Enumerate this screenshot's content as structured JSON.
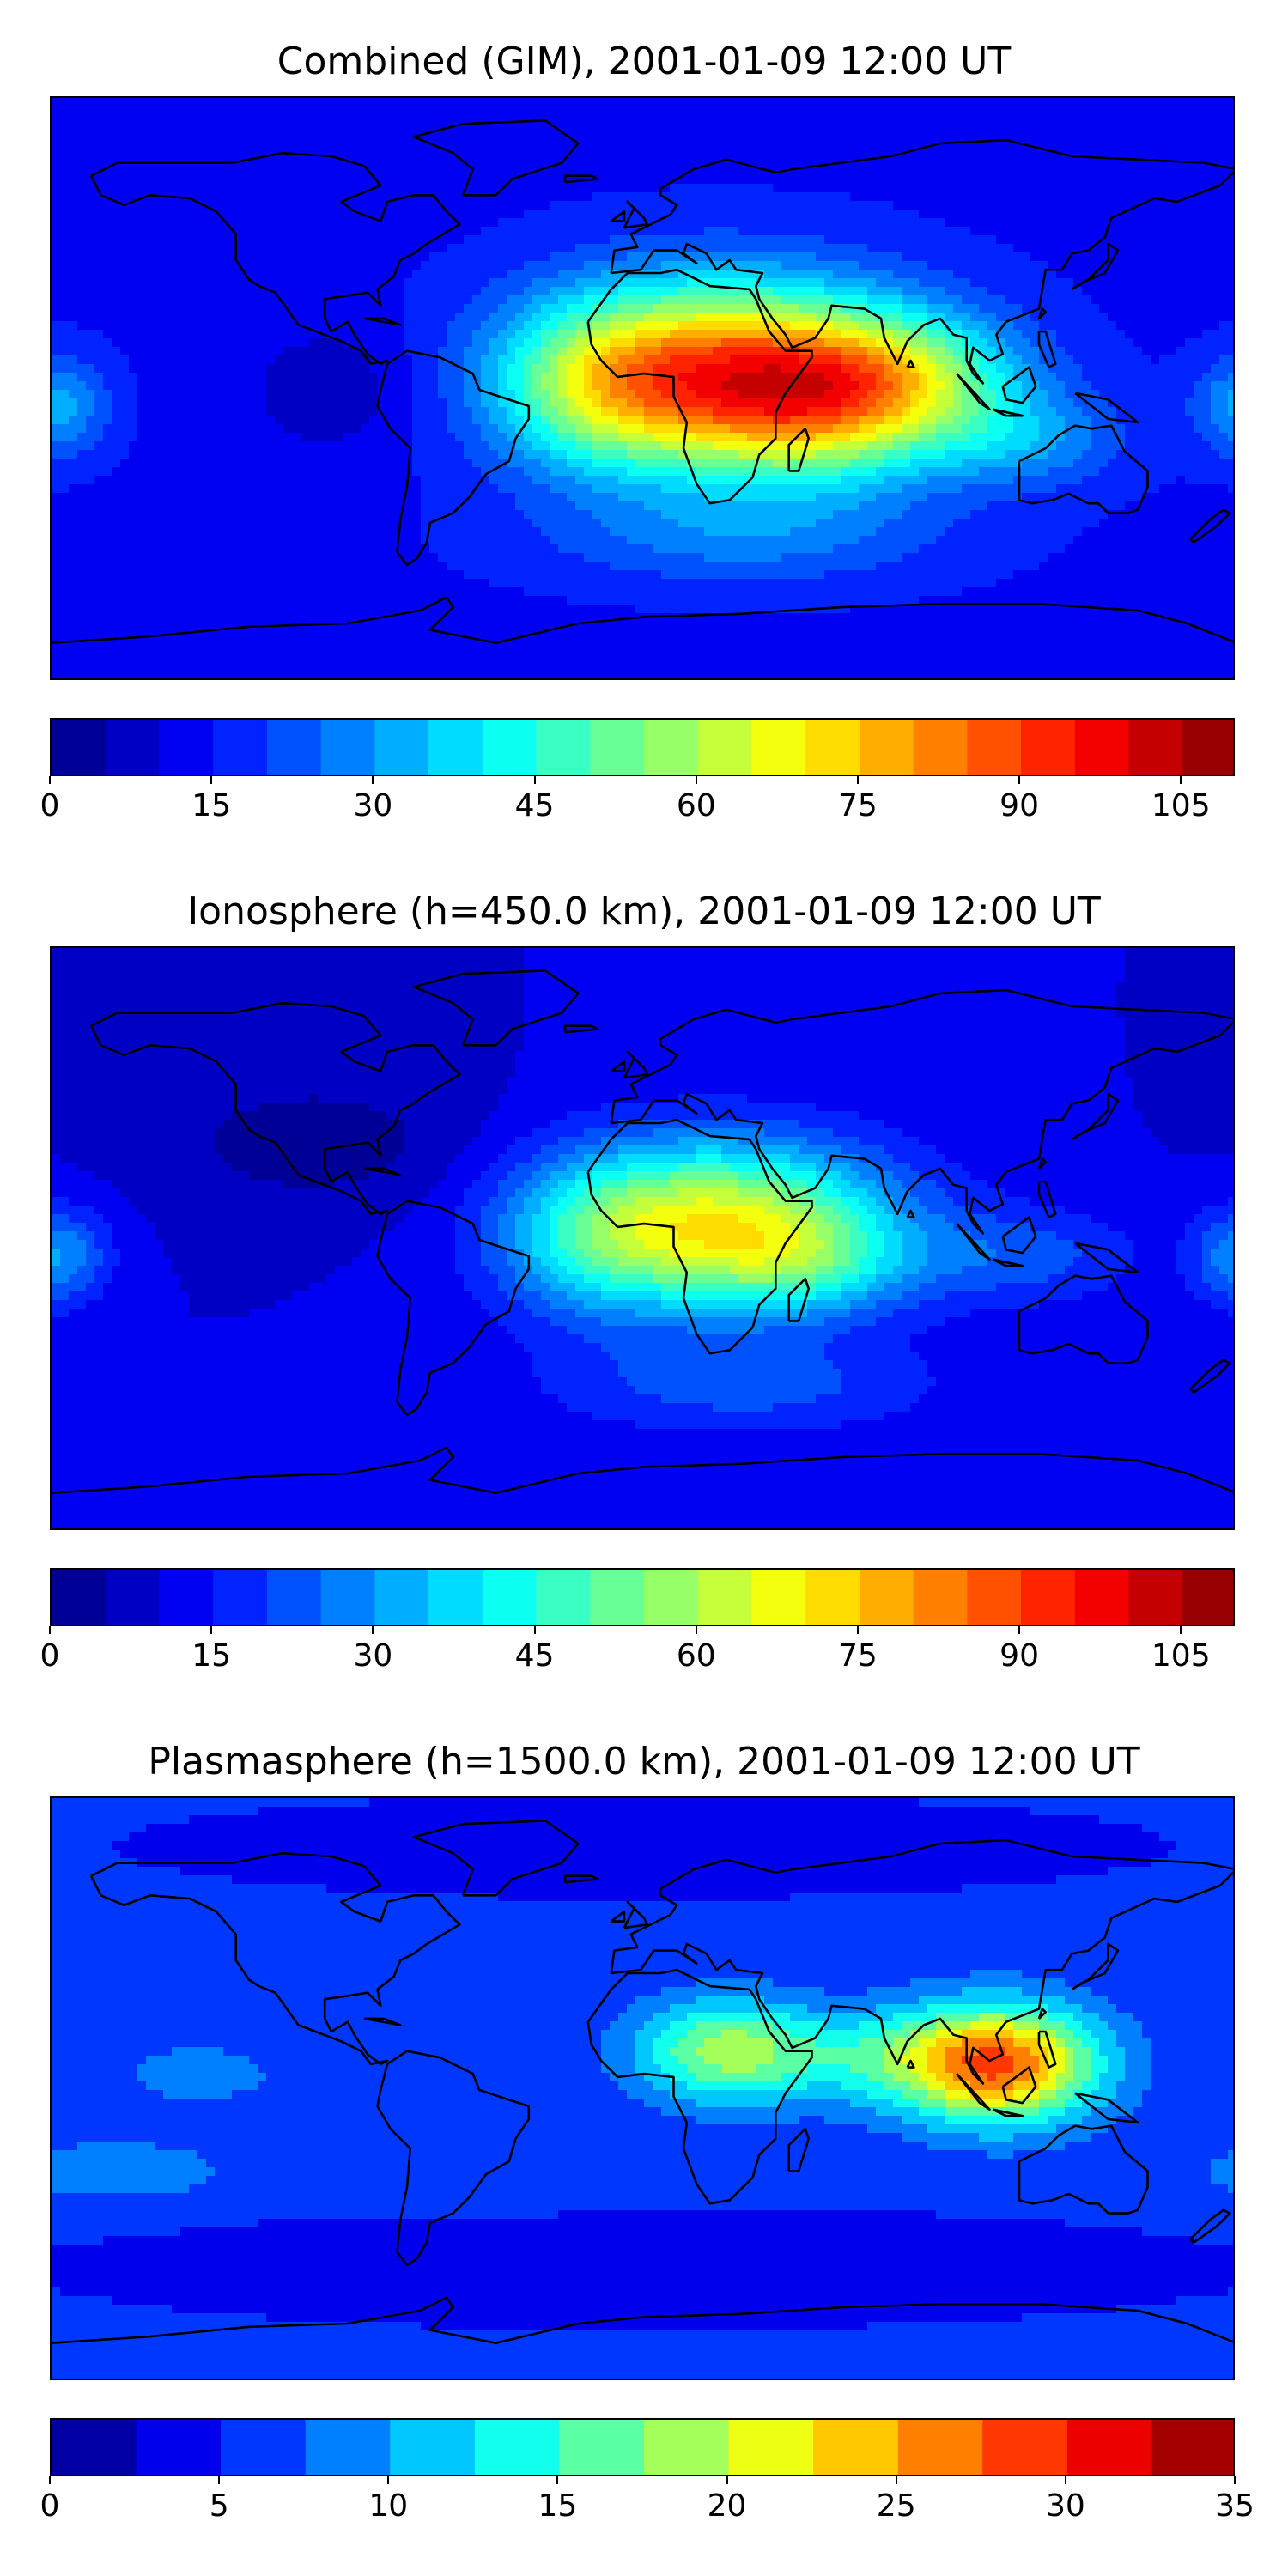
{
  "colors": {
    "jet_low": "#00007f",
    "jet_mid": "#7fff7f",
    "jet_high": "#7f0000",
    "coastline": "#000000",
    "frame": "#000000"
  },
  "panels": [
    {
      "title": "Combined (GIM), 2001-01-09 12:00 UT",
      "colorbar": {
        "min": 0,
        "max": 110,
        "levels": 22,
        "ticks": [
          "0",
          "15",
          "30",
          "45",
          "60",
          "75",
          "90",
          "105"
        ],
        "tick_values": [
          0,
          15,
          30,
          45,
          60,
          75,
          90,
          105
        ]
      },
      "field": {
        "background": 14,
        "blobs": [
          {
            "lon": 25,
            "lat": 5,
            "rlon": 55,
            "rlat": 28,
            "amp": 70
          },
          {
            "lon": 55,
            "lat": -8,
            "rlon": 40,
            "rlat": 22,
            "amp": 25
          },
          {
            "lon": 80,
            "lat": 5,
            "rlon": 35,
            "rlat": 18,
            "amp": 25
          },
          {
            "lon": -15,
            "lat": 0,
            "rlon": 30,
            "rlat": 25,
            "amp": 20
          },
          {
            "lon": 115,
            "lat": -15,
            "rlon": 30,
            "rlat": 15,
            "amp": 15
          },
          {
            "lon": -178,
            "lat": -5,
            "rlon": 15,
            "rlat": 15,
            "amp": 18
          },
          {
            "lon": 30,
            "lat": -45,
            "rlon": 60,
            "rlat": 15,
            "amp": 12
          },
          {
            "lon": -95,
            "lat": 0,
            "rlon": 25,
            "rlat": 20,
            "amp": -8
          }
        ]
      }
    },
    {
      "title": "Ionosphere  (h=450.0 km), 2001-01-09 12:00 UT",
      "colorbar": {
        "min": 0,
        "max": 110,
        "levels": 22,
        "ticks": [
          "0",
          "15",
          "30",
          "45",
          "60",
          "75",
          "90",
          "105"
        ],
        "tick_values": [
          0,
          15,
          30,
          45,
          60,
          75,
          90,
          105
        ]
      },
      "field": {
        "background": 10,
        "blobs": [
          {
            "lon": 25,
            "lat": 5,
            "rlon": 50,
            "rlat": 25,
            "amp": 55
          },
          {
            "lon": 50,
            "lat": -8,
            "rlon": 30,
            "rlat": 15,
            "amp": 15
          },
          {
            "lon": -15,
            "lat": 0,
            "rlon": 30,
            "rlat": 25,
            "amp": 18
          },
          {
            "lon": 115,
            "lat": -5,
            "rlon": 35,
            "rlat": 15,
            "amp": 12
          },
          {
            "lon": -178,
            "lat": -5,
            "rlon": 15,
            "rlat": 15,
            "amp": 20
          },
          {
            "lon": 30,
            "lat": -45,
            "rlon": 60,
            "rlat": 15,
            "amp": 12
          },
          {
            "lon": -100,
            "lat": 30,
            "rlon": 45,
            "rlat": 20,
            "amp": -8
          }
        ]
      }
    },
    {
      "title": "Plasmasphere (h=1500.0 km), 2001-01-09 12:00 UT",
      "colorbar": {
        "min": 0,
        "max": 35,
        "levels": 14,
        "ticks": [
          "0",
          "5",
          "10",
          "15",
          "20",
          "25",
          "30",
          "35"
        ],
        "tick_values": [
          0,
          5,
          10,
          15,
          20,
          25,
          30,
          35
        ]
      },
      "field": {
        "background": 5.5,
        "blobs": [
          {
            "lon": 108,
            "lat": 8,
            "rlon": 30,
            "rlat": 18,
            "amp": 22
          },
          {
            "lon": 25,
            "lat": 12,
            "rlon": 28,
            "rlat": 16,
            "amp": 13
          },
          {
            "lon": 70,
            "lat": 10,
            "rlon": 30,
            "rlat": 15,
            "amp": 6
          },
          {
            "lon": -135,
            "lat": 5,
            "rlon": 30,
            "rlat": 12,
            "amp": 3
          },
          {
            "lon": -160,
            "lat": -25,
            "rlon": 35,
            "rlat": 10,
            "amp": 4
          },
          {
            "lon": -50,
            "lat": -25,
            "rlon": 25,
            "rlat": 12,
            "amp": 2
          },
          {
            "lon": 0,
            "lat": 75,
            "rlon": 120,
            "rlat": 12,
            "amp": -3
          },
          {
            "lon": 0,
            "lat": -55,
            "rlon": 150,
            "rlat": 15,
            "amp": -2.5
          }
        ]
      }
    }
  ]
}
